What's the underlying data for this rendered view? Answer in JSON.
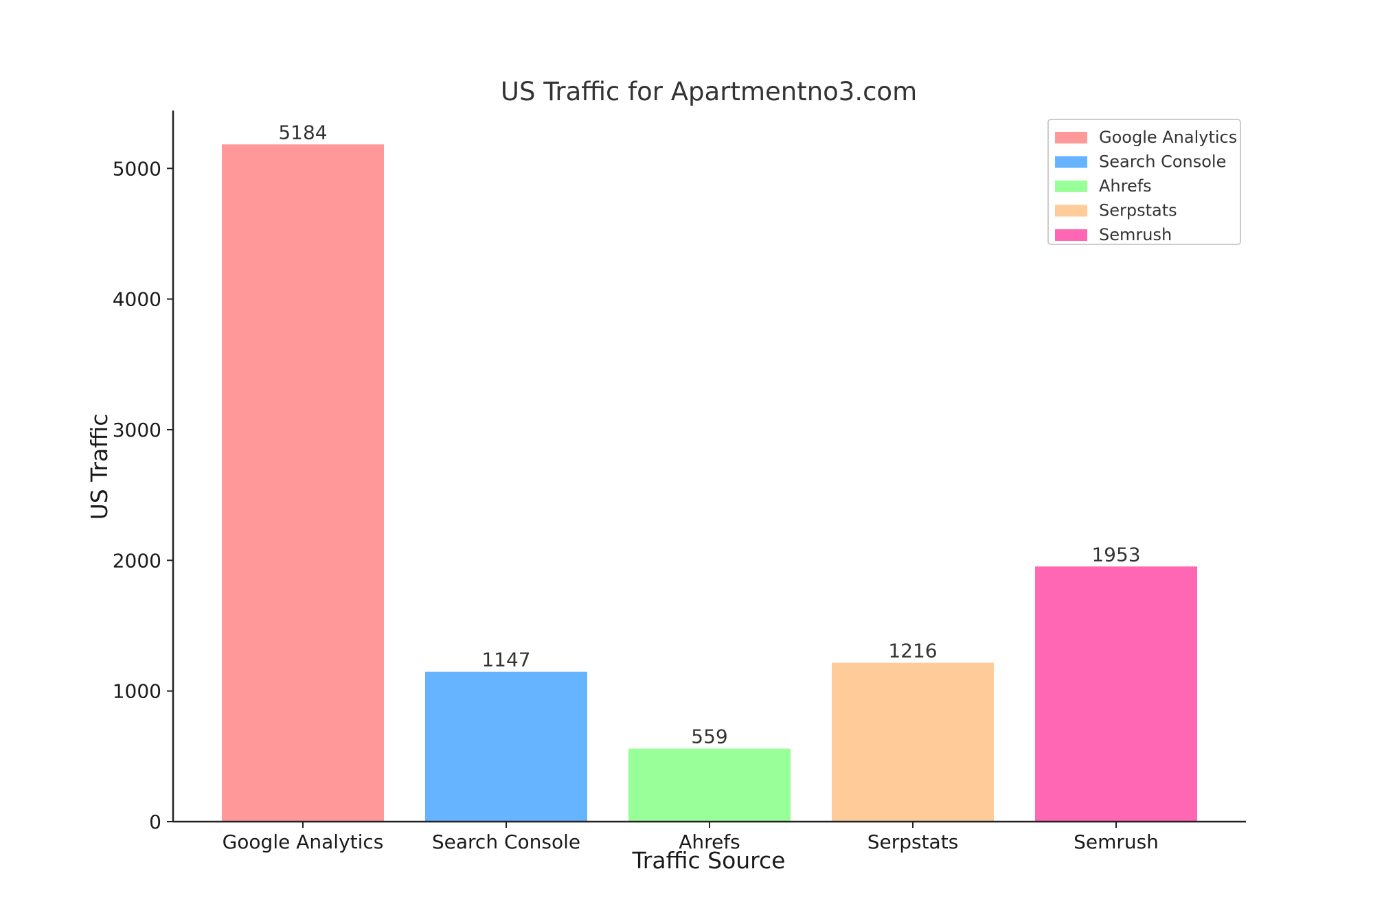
{
  "chart_data": {
    "type": "bar",
    "title": "US Traffic for Apartmentno3.com",
    "xlabel": "Traffic Source",
    "ylabel": "US Traffic",
    "categories": [
      "Google Analytics",
      "Search Console",
      "Ahrefs",
      "Serpstats",
      "Semrush"
    ],
    "values": [
      5184,
      1147,
      559,
      1216,
      1953
    ],
    "colors": [
      "#ff9999",
      "#66b3ff",
      "#99ff99",
      "#ffcc99",
      "#ff66b3"
    ],
    "yticks": [
      0,
      1000,
      2000,
      3000,
      4000,
      5000
    ],
    "ylim": [
      0,
      5443
    ],
    "grid": false,
    "legend": {
      "position": "top-right",
      "entries": [
        "Google Analytics",
        "Search Console",
        "Ahrefs",
        "Serpstats",
        "Semrush"
      ]
    },
    "data_labels": true
  }
}
